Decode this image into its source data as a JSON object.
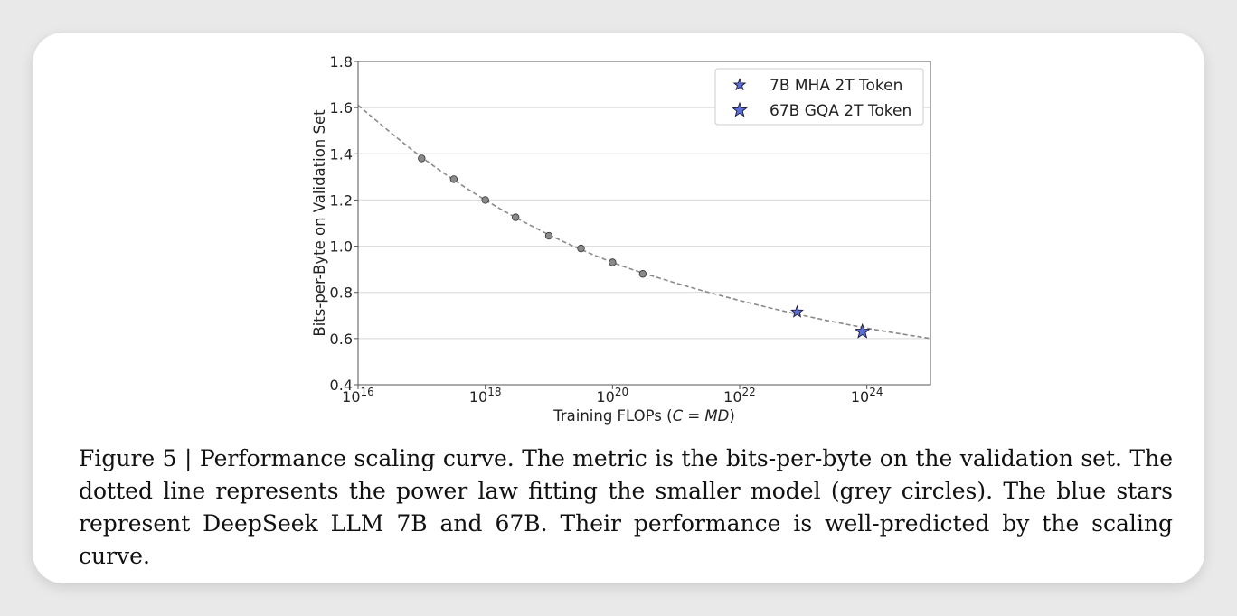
{
  "chart_data": {
    "type": "scatter",
    "xscale": "log10",
    "xlim": [
      1e+16,
      1e+25
    ],
    "ylim": [
      0.4,
      1.8
    ],
    "xticks": [
      {
        "value": 1e+16,
        "base": "10",
        "exp": "16"
      },
      {
        "value": 1e+18,
        "base": "10",
        "exp": "18"
      },
      {
        "value": 1e+20,
        "base": "10",
        "exp": "20"
      },
      {
        "value": 1e+22,
        "base": "10",
        "exp": "22"
      },
      {
        "value": 1e+24,
        "base": "10",
        "exp": "24"
      }
    ],
    "yticks": [
      "0.4",
      "0.6",
      "0.8",
      "1.0",
      "1.2",
      "1.4",
      "1.6",
      "1.8"
    ],
    "ygrid": true,
    "xlabel_prefix": "Training FLOPs (",
    "xlabel_italic": "C",
    "xlabel_mid": " = ",
    "xlabel_italic2": "MD",
    "xlabel_suffix": ")",
    "ylabel": "Bits-per-Byte on Validation Set",
    "legend_position": "top-right",
    "fit_curve": {
      "style": "dashed",
      "color": "#8a8a8a",
      "points": [
        {
          "x": 1e+16,
          "y": 1.61
        },
        {
          "x": 1e+17,
          "y": 1.385
        },
        {
          "x": 1e+18,
          "y": 1.2
        },
        {
          "x": 1e+19,
          "y": 1.05
        },
        {
          "x": 1e+20,
          "y": 0.93
        },
        {
          "x": 1e+21,
          "y": 0.84
        },
        {
          "x": 1e+22,
          "y": 0.765
        },
        {
          "x": 1e+23,
          "y": 0.7
        },
        {
          "x": 1e+24,
          "y": 0.645
        },
        {
          "x": 1e+25,
          "y": 0.6
        }
      ]
    },
    "series": [
      {
        "name": "",
        "marker": "circle",
        "color": "#8a8a8a",
        "points": [
          {
            "x": 1e+17,
            "y": 1.38
          },
          {
            "x": 3.2e+17,
            "y": 1.29
          },
          {
            "x": 1e+18,
            "y": 1.2
          },
          {
            "x": 3e+18,
            "y": 1.125
          },
          {
            "x": 1e+19,
            "y": 1.045
          },
          {
            "x": 3.2e+19,
            "y": 0.99
          },
          {
            "x": 1e+20,
            "y": 0.93
          },
          {
            "x": 3e+20,
            "y": 0.88
          }
        ]
      },
      {
        "name": "7B MHA 2T Token",
        "marker": "star-small",
        "color": "#5b6fd6",
        "points": [
          {
            "x": 8e+22,
            "y": 0.715
          }
        ]
      },
      {
        "name": "67B GQA 2T Token",
        "marker": "star-large",
        "color": "#5b6fd6",
        "points": [
          {
            "x": 8.5e+23,
            "y": 0.63
          }
        ]
      }
    ]
  },
  "caption": "Figure 5 | Performance scaling curve. The metric is the bits-per-byte on the validation set. The dotted line represents the power law fitting the smaller model (grey circles). The blue stars represent DeepSeek LLM 7B and 67B. Their performance is well-predicted by the scaling curve."
}
